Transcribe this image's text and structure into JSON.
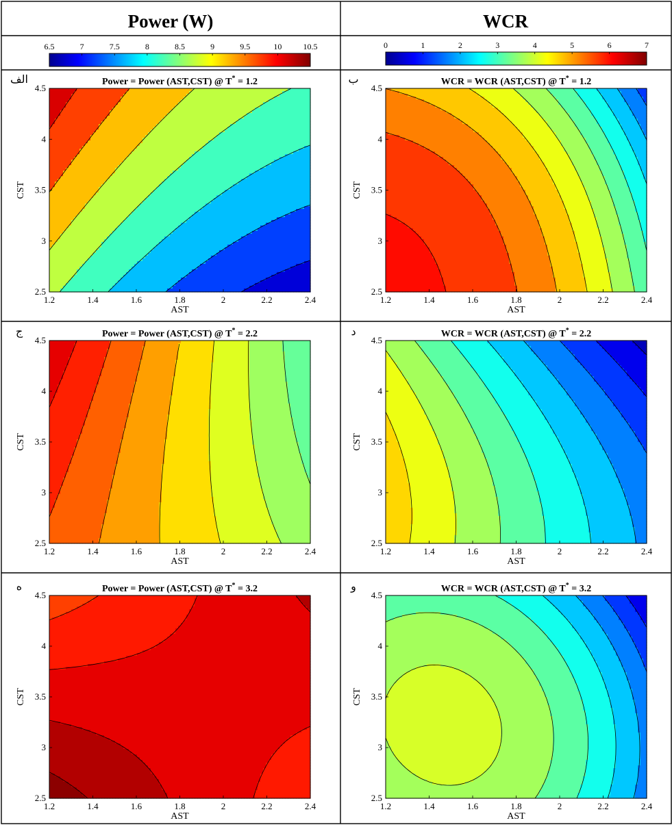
{
  "columns": [
    {
      "title": "Power (W)",
      "colorbar": {
        "min": 6.5,
        "max": 10.5,
        "ticks": [
          "6.5",
          "7",
          "7.5",
          "8",
          "8.5",
          "9",
          "9.5",
          "10",
          "10.5"
        ],
        "colormap": "jet"
      }
    },
    {
      "title": "WCR",
      "colorbar": {
        "min": 0,
        "max": 7,
        "ticks": [
          "0",
          "1",
          "2",
          "3",
          "4",
          "5",
          "6",
          "7"
        ],
        "colormap": "jet"
      }
    }
  ],
  "chart_data": [
    {
      "type": "contour",
      "panel_label": "الف",
      "title": "Power = Power (AST,CST) @ T",
      "title_sup": "*",
      "title_suffix": "= 1.2",
      "xlabel": "AST",
      "ylabel": "CST",
      "xlim": [
        1.2,
        2.4
      ],
      "ylim": [
        2.5,
        4.5
      ],
      "xticks": [
        "1.2",
        "1.4",
        "1.6",
        "1.8",
        "2",
        "2.2",
        "2.4"
      ],
      "yticks": [
        "2.5",
        "3",
        "3.5",
        "4",
        "4.5"
      ],
      "levels": [
        7,
        7.5,
        8,
        8.5,
        9,
        9.5,
        10
      ],
      "range": [
        6.5,
        10.5
      ],
      "model": "p1",
      "approx_value_range": [
        6.7,
        10.3
      ]
    },
    {
      "type": "contour",
      "panel_label": "ب",
      "title": "WCR = WCR (AST,CST) @ T",
      "title_sup": "*",
      "title_suffix": "= 1.2",
      "xlabel": "AST",
      "ylabel": "CST",
      "xlim": [
        1.2,
        2.4
      ],
      "ylim": [
        2.5,
        4.5
      ],
      "xticks": [
        "1.2",
        "1.4",
        "1.6",
        "1.8",
        "2",
        "2.2",
        "2.4"
      ],
      "yticks": [
        "2.5",
        "3",
        "3.5",
        "4",
        "4.5"
      ],
      "levels": [
        1,
        1.5,
        2,
        2.5,
        3,
        3.5,
        4,
        4.5,
        5,
        5.5,
        6
      ],
      "range": [
        0,
        7
      ],
      "model": "w1",
      "approx_value_range": [
        1.2,
        6.1
      ]
    },
    {
      "type": "contour",
      "panel_label": "ج",
      "title": "Power = Power (AST,CST) @ T",
      "title_sup": "*",
      "title_suffix": "= 2.2",
      "xlabel": "AST",
      "ylabel": "CST",
      "xlim": [
        1.2,
        2.4
      ],
      "ylim": [
        2.5,
        4.5
      ],
      "xticks": [
        "1.2",
        "1.4",
        "1.6",
        "1.8",
        "2",
        "2.2",
        "2.4"
      ],
      "yticks": [
        "2.5",
        "3",
        "3.5",
        "4",
        "4.5"
      ],
      "levels": [
        8.5,
        8.75,
        9,
        9.25,
        9.5,
        9.75,
        10
      ],
      "range": [
        6.5,
        10.5
      ],
      "model": "p2",
      "approx_value_range": [
        8.3,
        10.2
      ]
    },
    {
      "type": "contour",
      "panel_label": "د",
      "title": "WCR = WCR (AST,CST) @ T",
      "title_sup": "*",
      "title_suffix": "= 2.2",
      "xlabel": "AST",
      "ylabel": "CST",
      "xlim": [
        1.2,
        2.4
      ],
      "ylim": [
        2.5,
        4.5
      ],
      "xticks": [
        "1.2",
        "1.4",
        "1.6",
        "1.8",
        "2",
        "2.2",
        "2.4"
      ],
      "yticks": [
        "2.5",
        "3",
        "3.5",
        "4",
        "4.5"
      ],
      "levels": [
        0.5,
        1,
        1.5,
        2,
        2.5,
        3,
        3.5,
        4,
        4.5
      ],
      "range": [
        0,
        7
      ],
      "model": "w2",
      "approx_value_range": [
        0.3,
        4.8
      ]
    },
    {
      "type": "contour",
      "panel_label": "ه",
      "title": "Power = Power (AST,CST) @ T",
      "title_sup": "*",
      "title_suffix": "= 3.2",
      "xlabel": "AST",
      "ylabel": "CST",
      "xlim": [
        1.2,
        2.4
      ],
      "ylim": [
        2.5,
        4.5
      ],
      "xticks": [
        "1.2",
        "1.4",
        "1.6",
        "1.8",
        "2",
        "2.2",
        "2.4"
      ],
      "yticks": [
        "2.5",
        "3",
        "3.5",
        "4",
        "4.5"
      ],
      "levels": [
        9.8,
        10,
        10.2,
        10.4
      ],
      "range": [
        6.5,
        10.5
      ],
      "model": "p3",
      "approx_value_range": [
        9.7,
        10.5
      ]
    },
    {
      "type": "contour",
      "panel_label": "و",
      "title": "WCR = WCR (AST,CST) @ T",
      "title_sup": "*",
      "title_suffix": "= 3.2",
      "xlabel": "AST",
      "ylabel": "CST",
      "xlim": [
        1.2,
        2.4
      ],
      "ylim": [
        2.5,
        4.5
      ],
      "xticks": [
        "1.2",
        "1.4",
        "1.6",
        "1.8",
        "2",
        "2.2",
        "2.4"
      ],
      "yticks": [
        "2.5",
        "3",
        "3.5",
        "4",
        "4.5"
      ],
      "levels": [
        0.5,
        1,
        1.5,
        2,
        2.5,
        3,
        3.5,
        4
      ],
      "range": [
        0,
        7
      ],
      "model": "w3",
      "approx_value_range": [
        0.5,
        4.2
      ]
    }
  ]
}
